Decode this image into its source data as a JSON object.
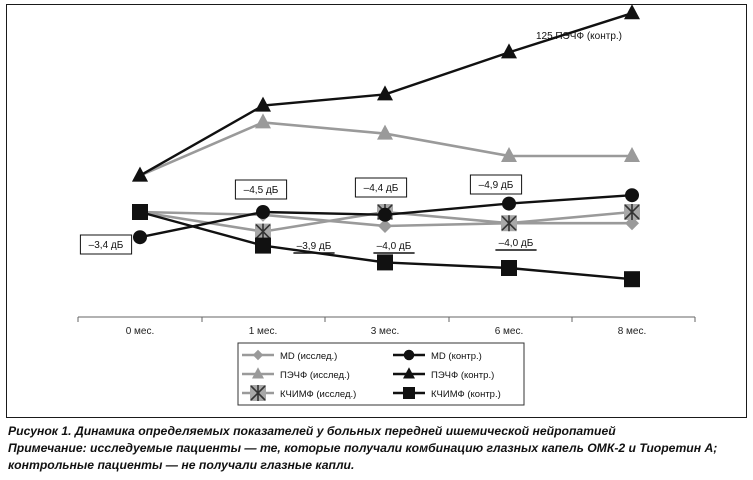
{
  "chart_data": {
    "type": "line",
    "title": "",
    "xlabel": "",
    "ylabel": "",
    "categories": [
      "0 мес.",
      "1 мес.",
      "3 мес.",
      "6 мес.",
      "8 мес."
    ],
    "ylim": [
      0,
      100
    ],
    "grid": false,
    "legend_position": "bottom",
    "series": [
      {
        "name": "MD (исслед.)",
        "values": [
          35,
          34,
          30,
          31,
          31
        ],
        "color": "#9a9a9a",
        "marker": "diamond"
      },
      {
        "name": "MD (контр.)",
        "values": [
          26,
          35,
          34,
          38,
          41
        ],
        "color": "#111111",
        "marker": "circle"
      },
      {
        "name": "ПЭЧФ (исслед.)",
        "values": [
          48,
          67,
          63,
          55,
          55
        ],
        "color": "#9a9a9a",
        "marker": "triangle"
      },
      {
        "name": "ПЭЧФ (контр.)",
        "values": [
          48,
          73,
          77,
          92,
          106
        ],
        "color": "#111111",
        "marker": "triangle"
      },
      {
        "name": "КЧИМФ (исслед.)",
        "values": [
          35,
          28,
          35,
          31,
          35
        ],
        "color": "#9a9a9a",
        "marker": "xbox"
      },
      {
        "name": "КЧИМФ (контр.)",
        "values": [
          35,
          23,
          17,
          15,
          11
        ],
        "color": "#111111",
        "marker": "square"
      }
    ],
    "annotations": [
      {
        "text": "125 ПЭЧФ (контр.)",
        "style": "plain"
      },
      {
        "text": "–4,5 дБ",
        "style": "box"
      },
      {
        "text": "–4,4 дБ",
        "style": "box"
      },
      {
        "text": "–4,9 дБ",
        "style": "box"
      },
      {
        "text": "–3,4 дБ",
        "style": "box"
      },
      {
        "text": "–3,9 дБ",
        "style": "underline"
      },
      {
        "text": "–4,0 дБ",
        "style": "underline"
      },
      {
        "text": "–4,0 дБ",
        "style": "underline"
      }
    ]
  },
  "caption": {
    "figure_label": "Рисунок 1. Динамика определяемых показателей у больных передней ишемической нейропатией",
    "note_line1": "Примечание: исследуемые пациенты — те, которые получали комбинацию глазных капель ОМК-2 и Тиоретин А;",
    "note_line2": "контрольные пациенты — не получали глазные капли."
  }
}
